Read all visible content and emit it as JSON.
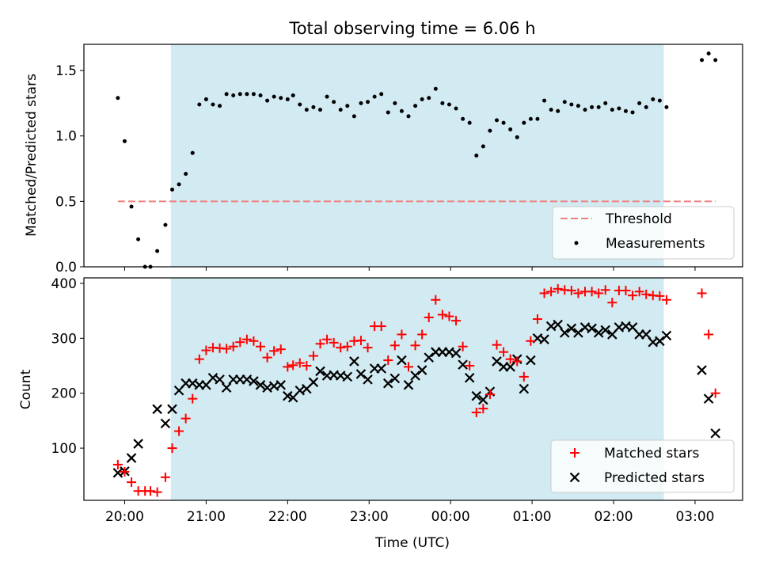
{
  "chart_data": {
    "title": "Total observing time = 6.06 h",
    "type": "scatter",
    "x_axis": {
      "label": "Time (UTC)",
      "tick_values": [
        "20:00",
        "21:00",
        "22:00",
        "23:00",
        "00:00",
        "01:00",
        "02:00",
        "03:00"
      ],
      "range": [
        "19:30",
        "03:35"
      ]
    },
    "observing_window": {
      "start": "20:34",
      "end": "02:37",
      "color": "#add8e6"
    },
    "top_panel": {
      "ylabel": "Matched/Predicted stars",
      "ylim": [
        0,
        1.7
      ],
      "y_ticks": [
        0.0,
        0.5,
        1.0,
        1.5
      ],
      "legend_position": "lower-right",
      "threshold": {
        "name": "Threshold",
        "value": 0.5,
        "from": "19:55",
        "to": "03:15",
        "color": "#f08080",
        "style": "dashed"
      },
      "measurements": {
        "name": "Measurements",
        "color": "#000000",
        "points": [
          [
            "19:55",
            1.29
          ],
          [
            "20:00",
            0.96
          ],
          [
            "20:05",
            0.46
          ],
          [
            "20:10",
            0.21
          ],
          [
            "20:15",
            0.0
          ],
          [
            "20:19",
            0.0
          ],
          [
            "20:24",
            0.12
          ],
          [
            "20:30",
            0.32
          ],
          [
            "20:35",
            0.59
          ],
          [
            "20:40",
            0.63
          ],
          [
            "20:45",
            0.71
          ],
          [
            "20:50",
            0.87
          ],
          [
            "20:55",
            1.24
          ],
          [
            "21:00",
            1.28
          ],
          [
            "21:05",
            1.24
          ],
          [
            "21:10",
            1.23
          ],
          [
            "21:15",
            1.32
          ],
          [
            "21:20",
            1.31
          ],
          [
            "21:25",
            1.32
          ],
          [
            "21:30",
            1.32
          ],
          [
            "21:35",
            1.32
          ],
          [
            "21:40",
            1.31
          ],
          [
            "21:45",
            1.27
          ],
          [
            "21:50",
            1.3
          ],
          [
            "21:55",
            1.29
          ],
          [
            "22:00",
            1.28
          ],
          [
            "22:04",
            1.31
          ],
          [
            "22:09",
            1.24
          ],
          [
            "22:14",
            1.2
          ],
          [
            "22:19",
            1.22
          ],
          [
            "22:24",
            1.2
          ],
          [
            "22:29",
            1.3
          ],
          [
            "22:34",
            1.26
          ],
          [
            "22:39",
            1.2
          ],
          [
            "22:44",
            1.23
          ],
          [
            "22:49",
            1.15
          ],
          [
            "22:54",
            1.25
          ],
          [
            "22:59",
            1.26
          ],
          [
            "23:04",
            1.3
          ],
          [
            "23:09",
            1.32
          ],
          [
            "23:14",
            1.18
          ],
          [
            "23:19",
            1.25
          ],
          [
            "23:24",
            1.19
          ],
          [
            "23:29",
            1.15
          ],
          [
            "23:34",
            1.23
          ],
          [
            "23:39",
            1.28
          ],
          [
            "23:44",
            1.29
          ],
          [
            "23:49",
            1.36
          ],
          [
            "23:54",
            1.25
          ],
          [
            "23:59",
            1.24
          ],
          [
            "00:04",
            1.21
          ],
          [
            "00:09",
            1.13
          ],
          [
            "00:14",
            1.1
          ],
          [
            "00:19",
            0.85
          ],
          [
            "00:24",
            0.92
          ],
          [
            "00:29",
            1.04
          ],
          [
            "00:34",
            1.12
          ],
          [
            "00:39",
            1.1
          ],
          [
            "00:44",
            1.05
          ],
          [
            "00:49",
            0.99
          ],
          [
            "00:54",
            1.1
          ],
          [
            "00:59",
            1.13
          ],
          [
            "01:04",
            1.13
          ],
          [
            "01:09",
            1.27
          ],
          [
            "01:14",
            1.2
          ],
          [
            "01:19",
            1.19
          ],
          [
            "01:24",
            1.26
          ],
          [
            "01:29",
            1.24
          ],
          [
            "01:34",
            1.23
          ],
          [
            "01:39",
            1.2
          ],
          [
            "01:44",
            1.22
          ],
          [
            "01:49",
            1.22
          ],
          [
            "01:54",
            1.25
          ],
          [
            "01:59",
            1.2
          ],
          [
            "02:04",
            1.21
          ],
          [
            "02:09",
            1.19
          ],
          [
            "02:14",
            1.18
          ],
          [
            "02:19",
            1.25
          ],
          [
            "02:24",
            1.22
          ],
          [
            "02:29",
            1.28
          ],
          [
            "02:34",
            1.27
          ],
          [
            "02:39",
            1.22
          ],
          [
            "03:05",
            1.58
          ],
          [
            "03:10",
            1.63
          ],
          [
            "03:15",
            1.58
          ]
        ]
      }
    },
    "bottom_panel": {
      "ylabel": "Count",
      "ylim": [
        5,
        410
      ],
      "y_ticks": [
        100,
        200,
        300,
        400
      ],
      "legend_position": "lower-right",
      "series": [
        {
          "name": "Matched stars",
          "marker": "plus",
          "color": "#ff0000",
          "points": [
            [
              "19:55",
              70
            ],
            [
              "20:00",
              57
            ],
            [
              "20:05",
              38
            ],
            [
              "20:10",
              22
            ],
            [
              "20:15",
              22
            ],
            [
              "20:19",
              22
            ],
            [
              "20:24",
              20
            ],
            [
              "20:30",
              47
            ],
            [
              "20:35",
              100
            ],
            [
              "20:40",
              131
            ],
            [
              "20:45",
              154
            ],
            [
              "20:50",
              190
            ],
            [
              "20:55",
              262
            ],
            [
              "21:00",
              278
            ],
            [
              "21:05",
              283
            ],
            [
              "21:10",
              282
            ],
            [
              "21:15",
              281
            ],
            [
              "21:20",
              285
            ],
            [
              "21:25",
              293
            ],
            [
              "21:30",
              298
            ],
            [
              "21:35",
              295
            ],
            [
              "21:40",
              285
            ],
            [
              "21:45",
              265
            ],
            [
              "21:50",
              277
            ],
            [
              "21:55",
              280
            ],
            [
              "22:00",
              248
            ],
            [
              "22:04",
              251
            ],
            [
              "22:09",
              255
            ],
            [
              "22:14",
              250
            ],
            [
              "22:19",
              268
            ],
            [
              "22:24",
              290
            ],
            [
              "22:29",
              298
            ],
            [
              "22:34",
              292
            ],
            [
              "22:39",
              283
            ],
            [
              "22:44",
              285
            ],
            [
              "22:49",
              295
            ],
            [
              "22:54",
              296
            ],
            [
              "22:59",
              283
            ],
            [
              "23:04",
              322
            ],
            [
              "23:09",
              322
            ],
            [
              "23:14",
              260
            ],
            [
              "23:19",
              287
            ],
            [
              "23:24",
              307
            ],
            [
              "23:29",
              248
            ],
            [
              "23:34",
              287
            ],
            [
              "23:39",
              307
            ],
            [
              "23:44",
              338
            ],
            [
              "23:49",
              370
            ],
            [
              "23:54",
              343
            ],
            [
              "23:59",
              340
            ],
            [
              "00:04",
              332
            ],
            [
              "00:09",
              285
            ],
            [
              "00:14",
              250
            ],
            [
              "00:19",
              165
            ],
            [
              "00:24",
              172
            ],
            [
              "00:29",
              198
            ],
            [
              "00:34",
              288
            ],
            [
              "00:39",
              275
            ],
            [
              "00:44",
              262
            ],
            [
              "00:49",
              258
            ],
            [
              "00:54",
              230
            ],
            [
              "00:59",
              295
            ],
            [
              "01:04",
              335
            ],
            [
              "01:09",
              382
            ],
            [
              "01:14",
              385
            ],
            [
              "01:19",
              390
            ],
            [
              "01:24",
              388
            ],
            [
              "01:29",
              387
            ],
            [
              "01:34",
              382
            ],
            [
              "01:39",
              385
            ],
            [
              "01:44",
              385
            ],
            [
              "01:49",
              382
            ],
            [
              "01:54",
              388
            ],
            [
              "01:59",
              365
            ],
            [
              "02:04",
              387
            ],
            [
              "02:09",
              387
            ],
            [
              "02:14",
              378
            ],
            [
              "02:19",
              385
            ],
            [
              "02:24",
              380
            ],
            [
              "02:29",
              378
            ],
            [
              "02:34",
              377
            ],
            [
              "02:39",
              370
            ],
            [
              "03:05",
              382
            ],
            [
              "03:10",
              307
            ],
            [
              "03:15",
              200
            ]
          ]
        },
        {
          "name": "Predicted stars",
          "marker": "cross",
          "color": "#000000",
          "points": [
            [
              "19:55",
              55
            ],
            [
              "20:00",
              58
            ],
            [
              "20:05",
              82
            ],
            [
              "20:10",
              108
            ],
            [
              "20:24",
              171
            ],
            [
              "20:30",
              145
            ],
            [
              "20:35",
              171
            ],
            [
              "20:40",
              205
            ],
            [
              "20:45",
              218
            ],
            [
              "20:50",
              218
            ],
            [
              "20:55",
              215
            ],
            [
              "21:00",
              215
            ],
            [
              "21:05",
              228
            ],
            [
              "21:10",
              225
            ],
            [
              "21:15",
              210
            ],
            [
              "21:20",
              225
            ],
            [
              "21:25",
              225
            ],
            [
              "21:30",
              225
            ],
            [
              "21:35",
              222
            ],
            [
              "21:40",
              215
            ],
            [
              "21:45",
              210
            ],
            [
              "21:50",
              213
            ],
            [
              "21:55",
              215
            ],
            [
              "22:00",
              195
            ],
            [
              "22:04",
              192
            ],
            [
              "22:09",
              205
            ],
            [
              "22:14",
              208
            ],
            [
              "22:19",
              220
            ],
            [
              "22:24",
              240
            ],
            [
              "22:29",
              232
            ],
            [
              "22:34",
              233
            ],
            [
              "22:39",
              232
            ],
            [
              "22:44",
              230
            ],
            [
              "22:49",
              258
            ],
            [
              "22:54",
              235
            ],
            [
              "22:59",
              225
            ],
            [
              "23:04",
              245
            ],
            [
              "23:09",
              245
            ],
            [
              "23:14",
              218
            ],
            [
              "23:19",
              227
            ],
            [
              "23:24",
              260
            ],
            [
              "23:29",
              215
            ],
            [
              "23:34",
              232
            ],
            [
              "23:39",
              242
            ],
            [
              "23:44",
              265
            ],
            [
              "23:49",
              275
            ],
            [
              "23:54",
              275
            ],
            [
              "23:59",
              275
            ],
            [
              "00:04",
              273
            ],
            [
              "00:09",
              252
            ],
            [
              "00:14",
              228
            ],
            [
              "00:19",
              195
            ],
            [
              "00:24",
              188
            ],
            [
              "00:29",
              203
            ],
            [
              "00:34",
              258
            ],
            [
              "00:39",
              248
            ],
            [
              "00:44",
              248
            ],
            [
              "00:49",
              262
            ],
            [
              "00:54",
              208
            ],
            [
              "00:59",
              260
            ],
            [
              "01:04",
              300
            ],
            [
              "01:09",
              298
            ],
            [
              "01:14",
              322
            ],
            [
              "01:19",
              325
            ],
            [
              "01:24",
              310
            ],
            [
              "01:29",
              318
            ],
            [
              "01:34",
              310
            ],
            [
              "01:39",
              320
            ],
            [
              "01:44",
              318
            ],
            [
              "01:49",
              310
            ],
            [
              "01:54",
              315
            ],
            [
              "01:59",
              307
            ],
            [
              "02:04",
              320
            ],
            [
              "02:09",
              322
            ],
            [
              "02:14",
              320
            ],
            [
              "02:19",
              307
            ],
            [
              "02:24",
              307
            ],
            [
              "02:29",
              293
            ],
            [
              "02:34",
              295
            ],
            [
              "02:39",
              305
            ],
            [
              "03:05",
              242
            ],
            [
              "03:10",
              190
            ],
            [
              "03:15",
              127
            ]
          ]
        }
      ]
    }
  }
}
